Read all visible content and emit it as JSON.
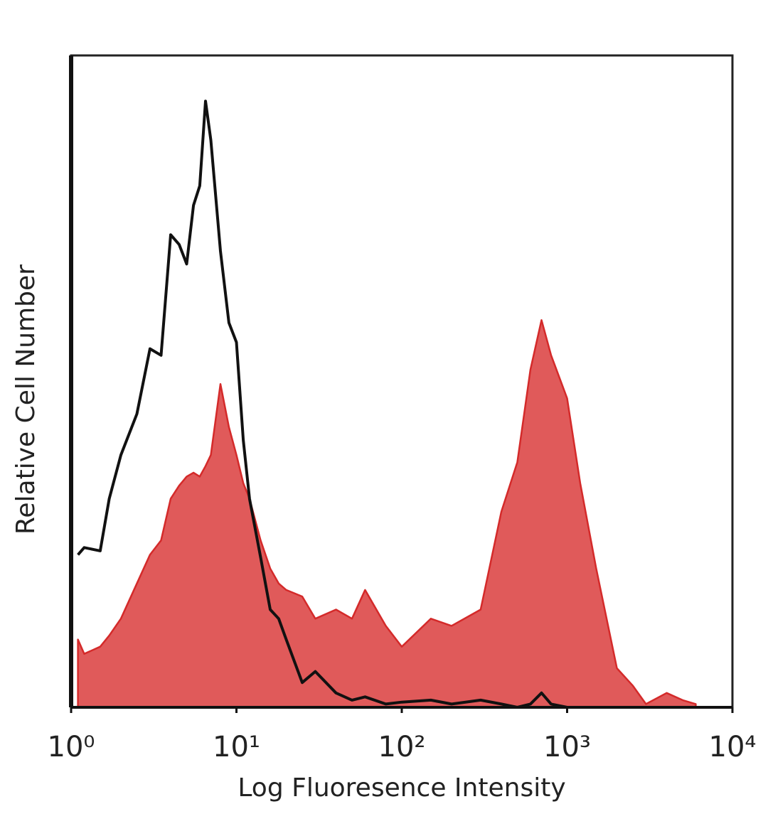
{
  "chart_data": {
    "type": "histogram-overlay",
    "x_label": "Log Fluoresence Intensity",
    "y_label": "Relative Cell Number",
    "xscale": "log",
    "xlim": [
      1,
      10000
    ],
    "ylim": [
      0,
      100
    ],
    "xticks": [
      {
        "value": 1,
        "label": "10⁰"
      },
      {
        "value": 10,
        "label": "10¹"
      },
      {
        "value": 100,
        "label": "10²"
      },
      {
        "value": 1000,
        "label": "10³"
      },
      {
        "value": 10000,
        "label": "10⁴"
      }
    ],
    "x": [
      1.1,
      1.2,
      1.5,
      1.7,
      2,
      2.5,
      3,
      3.5,
      4,
      4.5,
      5,
      5.5,
      6,
      6.5,
      7,
      8,
      9,
      10,
      11,
      12,
      14,
      16,
      18,
      20,
      25,
      30,
      40,
      50,
      60,
      80,
      100,
      150,
      200,
      300,
      400,
      500,
      600,
      700,
      800,
      1000,
      1200,
      1500,
      2000,
      2500,
      3000,
      4000,
      5000,
      6000
    ],
    "series": [
      {
        "fill": true,
        "color": "#e05a5a",
        "line_color": "#d42a2a",
        "values": [
          10.4,
          8.2,
          9.3,
          11,
          13.6,
          19,
          23.4,
          25.6,
          32,
          34,
          35.4,
          36,
          35.4,
          37,
          38.7,
          49.6,
          43,
          38.7,
          34.4,
          32,
          25.6,
          21.3,
          19,
          18,
          17,
          13.6,
          15,
          13.6,
          18,
          12.5,
          9.3,
          13.6,
          12.5,
          15,
          30,
          37.6,
          51.8,
          59.4,
          54,
          47.4,
          34.4,
          21.3,
          6,
          3.3,
          0.5,
          2.2,
          1.1,
          0.5
        ]
      },
      {
        "fill": false,
        "color": "#111111",
        "values": [
          23.4,
          24.5,
          24,
          32,
          38.7,
          45,
          55,
          54,
          72.5,
          71,
          68,
          77,
          80,
          93,
          87,
          70,
          59,
          56,
          41,
          32,
          23,
          15,
          13.6,
          10.4,
          3.8,
          5.5,
          2.2,
          1.1,
          1.6,
          0.5,
          0.8,
          1.1,
          0.5,
          1.1,
          0.5,
          0,
          0.5,
          2.2,
          0.5,
          0,
          null,
          null,
          null,
          null,
          null,
          null,
          null,
          null
        ]
      }
    ]
  }
}
